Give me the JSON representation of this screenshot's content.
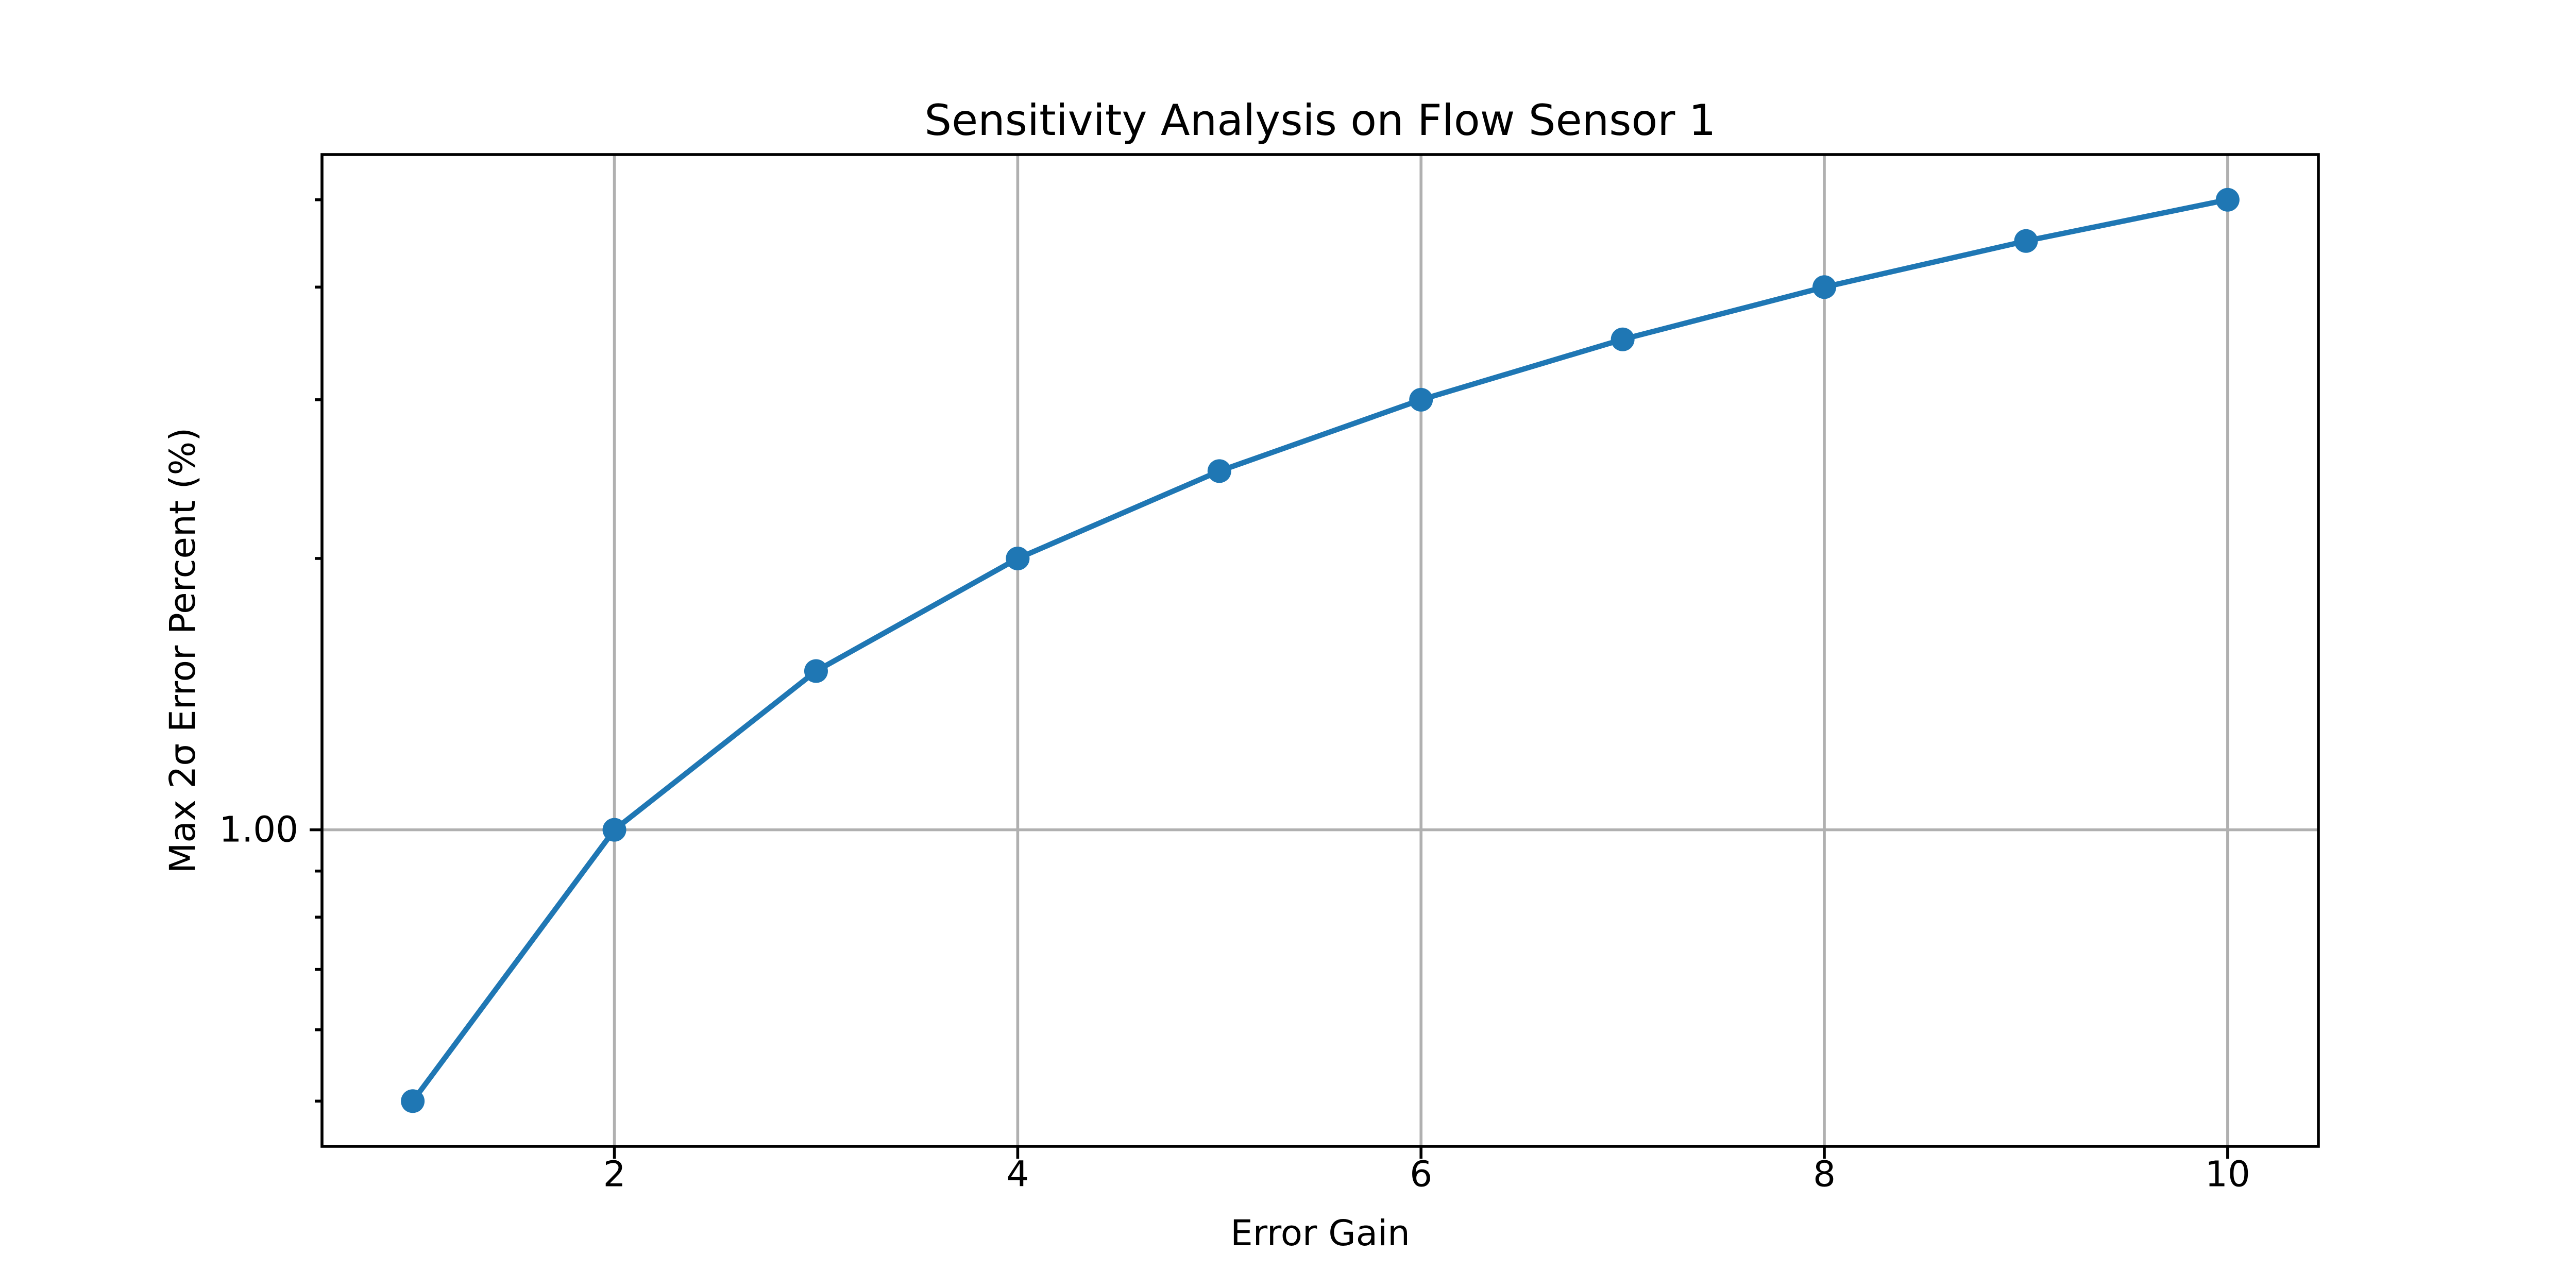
{
  "chart_data": {
    "type": "line",
    "title": "Sensitivity Analysis on Flow Sensor 1",
    "xlabel": "Error Gain",
    "ylabel": "Max 2σ Error Percent (%)",
    "x": [
      1,
      2,
      3,
      4,
      5,
      6,
      7,
      8,
      9,
      10
    ],
    "series": [
      {
        "name": "Max 2σ Error Percent",
        "values": [
          0.5,
          1.0,
          1.5,
          2.0,
          2.5,
          3.0,
          3.5,
          4.0,
          4.5,
          5.0
        ]
      }
    ],
    "y_scale": "log",
    "xlim": [
      0.55,
      10.45
    ],
    "ylim": [
      0.4455,
      5.612
    ],
    "x_ticks": [
      {
        "value": 2,
        "label": "2"
      },
      {
        "value": 4,
        "label": "4"
      },
      {
        "value": 6,
        "label": "6"
      },
      {
        "value": 8,
        "label": "8"
      },
      {
        "value": 10,
        "label": "10"
      }
    ],
    "y_ticks_major": [
      {
        "value": 1.0,
        "label": "1.00"
      }
    ],
    "y_ticks_minor": [
      0.5,
      0.6,
      0.7,
      0.8,
      0.9,
      2,
      3,
      4,
      5
    ],
    "grid": true,
    "legend_position": "none",
    "line_color": "#1f77b4",
    "marker": "circle",
    "marker_color": "#1f77b4",
    "grid_color": "#b0b0b0",
    "spine_color": "#000000",
    "background_color": "#ffffff"
  }
}
